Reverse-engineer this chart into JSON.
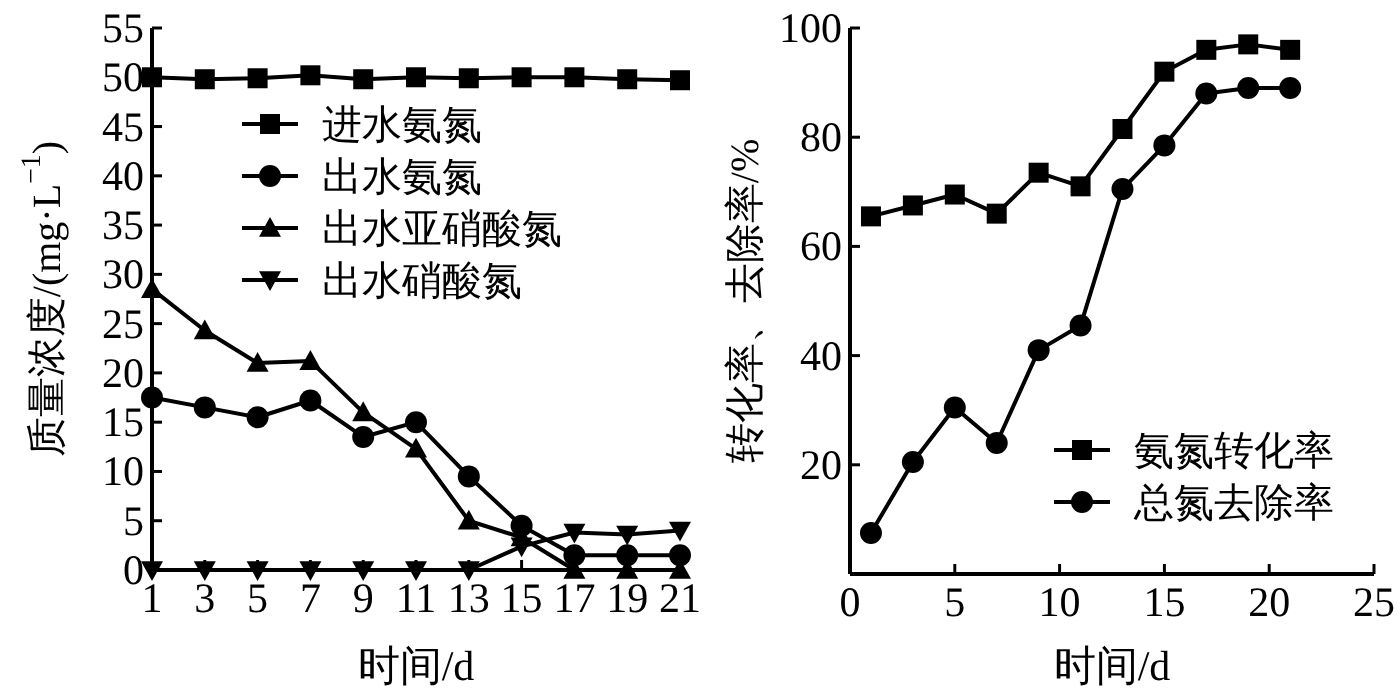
{
  "chart_data": [
    {
      "type": "line",
      "xlabel": "时间/d",
      "ylabel": "质量浓度/(mg·L$^{−1}$)",
      "x": [
        1,
        3,
        5,
        7,
        9,
        11,
        13,
        15,
        17,
        19,
        21
      ],
      "xlim": [
        1,
        21
      ],
      "xticks": [
        1,
        3,
        5,
        7,
        9,
        11,
        13,
        15,
        17,
        19,
        21
      ],
      "ylim": [
        0,
        55
      ],
      "yticks": [
        0,
        5,
        10,
        15,
        20,
        25,
        30,
        35,
        40,
        45,
        50,
        55
      ],
      "grid": false,
      "legend": "top",
      "series": [
        {
          "name": "进水氨氮",
          "color": "#000000",
          "marker": "square",
          "values": [
            50,
            49.8,
            49.9,
            50.2,
            49.8,
            50,
            49.9,
            50,
            50,
            49.8,
            49.7
          ]
        },
        {
          "name": "出水氨氮",
          "color": "#000000",
          "marker": "circle",
          "values": [
            17.5,
            16.5,
            15.5,
            17.2,
            13.5,
            15,
            9.5,
            4.5,
            1.5,
            1.5,
            1.5
          ]
        },
        {
          "name": "出水亚硝酸氮",
          "color": "#000000",
          "marker": "triangle",
          "values": [
            28.5,
            24.3,
            21,
            21.2,
            16,
            12.3,
            5,
            3.3,
            0,
            0,
            0
          ]
        },
        {
          "name": "出水硝酸氮",
          "color": "#000000",
          "marker": "triangle-down",
          "values": [
            0,
            0,
            0,
            0,
            0,
            0,
            0,
            2.4,
            3.8,
            3.6,
            4
          ]
        }
      ]
    },
    {
      "type": "line",
      "xlabel": "时间/d",
      "ylabel": "转化率、去除率/%",
      "x": [
        1,
        3,
        5,
        7,
        9,
        11,
        13,
        15,
        17,
        19,
        21
      ],
      "xlim": [
        0,
        25
      ],
      "xticks": [
        0,
        5,
        10,
        15,
        20,
        25
      ],
      "ylim": [
        0,
        100
      ],
      "yticks": [
        20,
        40,
        60,
        80,
        100
      ],
      "grid": false,
      "legend": "bottom right",
      "series": [
        {
          "name": "氨氮转化率",
          "color": "#000000",
          "marker": "square",
          "values": [
            65.5,
            67.5,
            69.5,
            66,
            73.5,
            71,
            81.5,
            92,
            96,
            97,
            96
          ]
        },
        {
          "name": "总氮去除率",
          "color": "#000000",
          "marker": "circle",
          "values": [
            7.5,
            20.5,
            30.5,
            24,
            41,
            45.5,
            70.5,
            78.5,
            88,
            89,
            89
          ]
        }
      ]
    }
  ]
}
